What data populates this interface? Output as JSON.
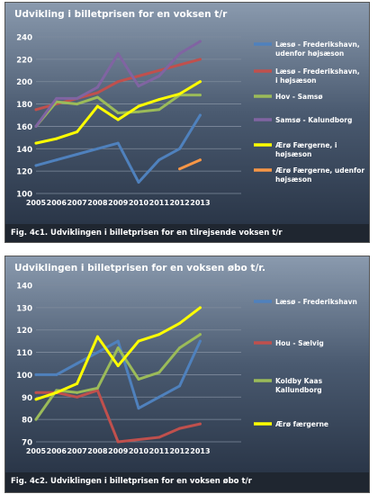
{
  "chart_data": [
    {
      "type": "line",
      "title": "Udvikling i billetprisen for en voksen t/r",
      "caption": "Fig. 4c1. Udviklingen i billetprisen for en tilrejsende voksen t/r",
      "xlabel": "",
      "ylabel": "",
      "x": [
        "2005",
        "2006",
        "2007",
        "2008",
        "2009",
        "2010",
        "2011",
        "2012",
        "2013",
        "",
        ""
      ],
      "ylim": [
        100,
        240
      ],
      "yticks": [
        100,
        120,
        140,
        160,
        180,
        200,
        220,
        240
      ],
      "grid": true,
      "legend_position": "right",
      "series": [
        {
          "name": "Læsø - Frederikshavn, udenfor højsæson",
          "color": "#4f81bd",
          "values": [
            125,
            130,
            135,
            140,
            145,
            110,
            130,
            140,
            170,
            null,
            null
          ]
        },
        {
          "name": "Læsø - Frederikshavn, i højsæson",
          "color": "#c0504d",
          "values": [
            175,
            180,
            185,
            190,
            200,
            205,
            210,
            215,
            220,
            null,
            null
          ]
        },
        {
          "name": "Hov - Samsø",
          "color": "#9bbb59",
          "values": [
            160,
            182,
            180,
            186,
            172,
            173,
            175,
            188,
            188,
            null,
            null
          ]
        },
        {
          "name": "Samsø - Kalundborg",
          "color": "#8064a2",
          "values": [
            160,
            185,
            185,
            195,
            225,
            196,
            205,
            225,
            236,
            null,
            null
          ]
        },
        {
          "name": "Ærø Færgerne, i højsæson",
          "color": "#ffff00",
          "values": [
            145,
            149,
            155,
            178,
            166,
            178,
            184,
            189,
            200,
            null,
            null
          ]
        },
        {
          "name": "Ærø Færgerne, udenfor højsæson",
          "color": "#f79646",
          "values": [
            null,
            null,
            null,
            null,
            null,
            null,
            null,
            122,
            130,
            null,
            null
          ]
        }
      ]
    },
    {
      "type": "line",
      "title": "Udviklingen i billetprisen for en voksen øbo t/r.",
      "caption": "Fig. 4c2. Udviklingen i billetprisen for en voksen øbo t/r",
      "xlabel": "",
      "ylabel": "",
      "x": [
        "2005",
        "2006",
        "2007",
        "2008",
        "2009",
        "2010",
        "2011",
        "2012",
        "2013",
        "",
        ""
      ],
      "ylim": [
        70,
        140
      ],
      "yticks": [
        70,
        80,
        90,
        100,
        110,
        120,
        130,
        140
      ],
      "grid": true,
      "legend_position": "right",
      "series": [
        {
          "name": "Læsø - Frederikshavn",
          "color": "#4f81bd",
          "values": [
            100,
            100,
            105,
            110,
            115,
            85,
            90,
            95,
            115,
            null,
            null
          ]
        },
        {
          "name": "Hou - Sælvig",
          "color": "#c0504d",
          "values": [
            92,
            92,
            90,
            93,
            70,
            71,
            72,
            76,
            78,
            null,
            null
          ]
        },
        {
          "name": "Koldby Kaas Kallundborg",
          "color": "#9bbb59",
          "values": [
            80,
            93,
            92,
            94,
            112,
            98,
            101,
            112,
            118,
            null,
            null
          ]
        },
        {
          "name": "Ærø færgerne",
          "color": "#ffff00",
          "values": [
            89,
            92,
            96,
            117,
            104,
            115,
            118,
            123,
            130,
            null,
            null
          ]
        }
      ]
    }
  ]
}
